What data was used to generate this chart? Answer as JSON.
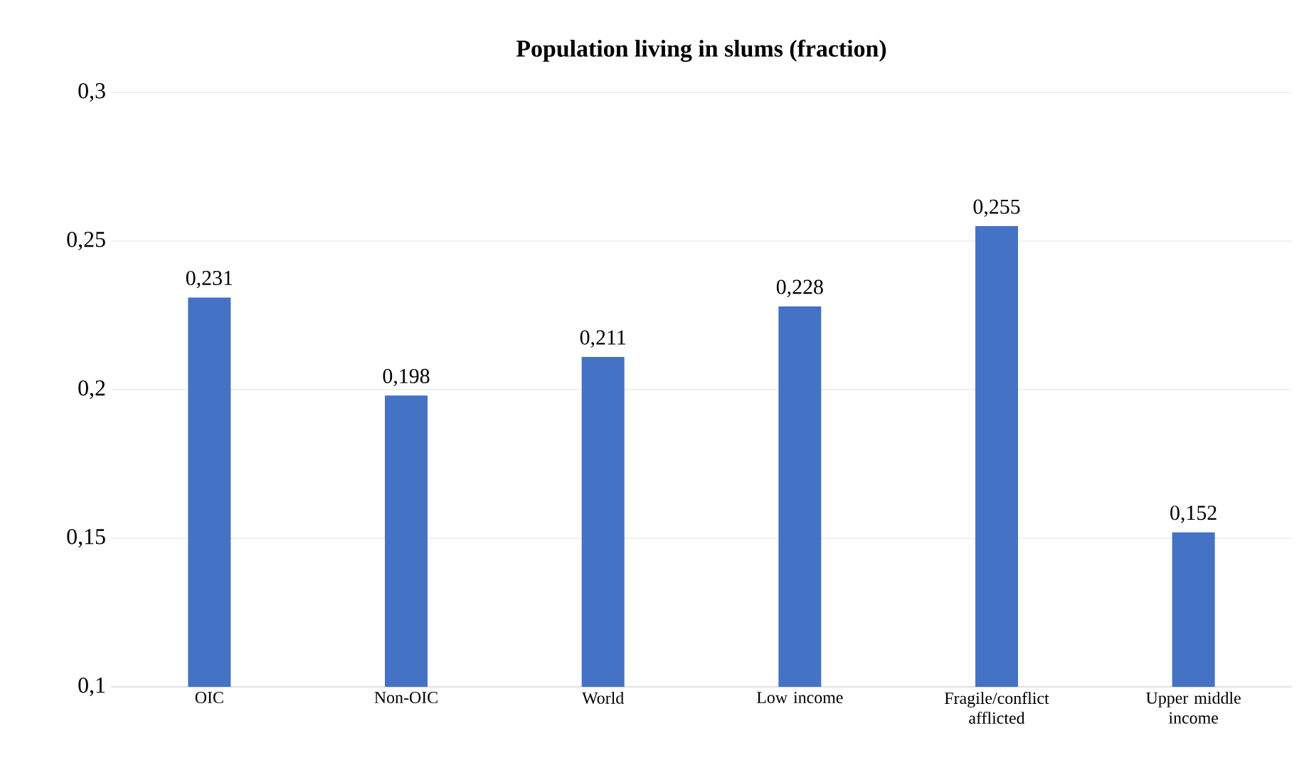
{
  "chart_data": {
    "type": "bar",
    "title": "Population living in slums (fraction)",
    "categories": [
      "OIC",
      "Non-OIC",
      "World",
      "Low income",
      "Fragile/conflict afflicted",
      "Upper middle income"
    ],
    "values": [
      0.231,
      0.198,
      0.211,
      0.228,
      0.255,
      0.152
    ],
    "value_labels": [
      "0,231",
      "0,198",
      "0,211",
      "0,228",
      "0,255",
      "0,152"
    ],
    "color": "#4472c4",
    "ylim": [
      0.1,
      0.3
    ],
    "yticks": [
      {
        "value": 0.1,
        "label": "0,1"
      },
      {
        "value": 0.15,
        "label": "0,15"
      },
      {
        "value": 0.2,
        "label": "0,2"
      },
      {
        "value": 0.25,
        "label": "0,25"
      },
      {
        "value": 0.3,
        "label": "0,3"
      }
    ],
    "grid": "y"
  }
}
